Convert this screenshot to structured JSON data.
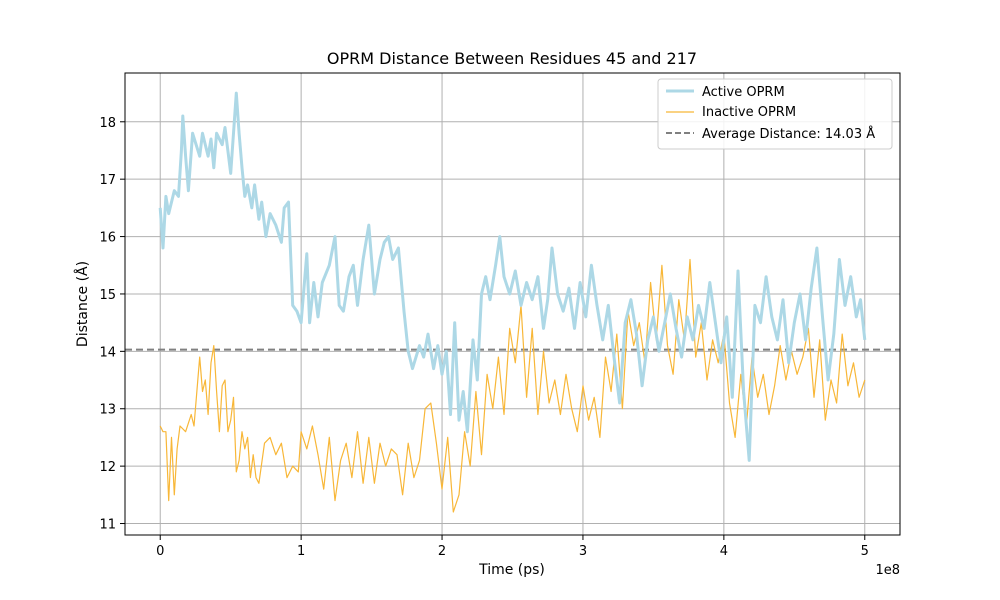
{
  "chart_data": {
    "type": "line",
    "title": "OPRM Distance Between Residues 45 and 217",
    "xlabel": "Time (ps)",
    "ylabel": "Distance (Å)",
    "x_scale_label": "1e8",
    "xlim": [
      -0.25,
      5.25
    ],
    "ylim": [
      10.8,
      18.85
    ],
    "x_ticks": [
      0,
      1,
      2,
      3,
      4,
      5
    ],
    "x_tick_labels": [
      "0",
      "1",
      "2",
      "3",
      "4",
      "5"
    ],
    "y_ticks": [
      11,
      12,
      13,
      14,
      15,
      16,
      17,
      18
    ],
    "y_tick_labels": [
      "11",
      "12",
      "13",
      "14",
      "15",
      "16",
      "17",
      "18"
    ],
    "grid": true,
    "legend_position": "top-right",
    "reference_line": {
      "value": 14.03,
      "label": "Average Distance: 14.03 Å",
      "color": "#808080",
      "style": "dashed"
    },
    "series": [
      {
        "name": "Active OPRM",
        "color": "#add8e6",
        "width": 3,
        "key_points": [
          [
            0.0,
            16.5
          ],
          [
            0.02,
            15.8
          ],
          [
            0.04,
            16.7
          ],
          [
            0.06,
            16.4
          ],
          [
            0.1,
            16.8
          ],
          [
            0.13,
            16.7
          ],
          [
            0.15,
            17.5
          ],
          [
            0.16,
            18.1
          ],
          [
            0.18,
            17.4
          ],
          [
            0.2,
            16.8
          ],
          [
            0.23,
            17.8
          ],
          [
            0.28,
            17.4
          ],
          [
            0.3,
            17.8
          ],
          [
            0.34,
            17.4
          ],
          [
            0.36,
            17.7
          ],
          [
            0.38,
            17.2
          ],
          [
            0.4,
            17.8
          ],
          [
            0.44,
            17.6
          ],
          [
            0.46,
            17.9
          ],
          [
            0.5,
            17.1
          ],
          [
            0.54,
            18.5
          ],
          [
            0.56,
            17.8
          ],
          [
            0.58,
            17.2
          ],
          [
            0.6,
            16.7
          ],
          [
            0.62,
            16.9
          ],
          [
            0.65,
            16.5
          ],
          [
            0.67,
            16.9
          ],
          [
            0.7,
            16.3
          ],
          [
            0.72,
            16.6
          ],
          [
            0.75,
            16.0
          ],
          [
            0.78,
            16.4
          ],
          [
            0.82,
            16.2
          ],
          [
            0.86,
            15.9
          ],
          [
            0.88,
            16.5
          ],
          [
            0.91,
            16.6
          ],
          [
            0.94,
            14.8
          ],
          [
            0.97,
            14.7
          ],
          [
            1.0,
            14.5
          ],
          [
            1.04,
            15.7
          ],
          [
            1.06,
            14.5
          ],
          [
            1.09,
            15.2
          ],
          [
            1.12,
            14.6
          ],
          [
            1.15,
            15.2
          ],
          [
            1.2,
            15.5
          ],
          [
            1.24,
            16.0
          ],
          [
            1.27,
            14.8
          ],
          [
            1.3,
            14.7
          ],
          [
            1.34,
            15.3
          ],
          [
            1.37,
            15.5
          ],
          [
            1.4,
            14.8
          ],
          [
            1.44,
            15.6
          ],
          [
            1.48,
            16.2
          ],
          [
            1.52,
            15.0
          ],
          [
            1.56,
            15.6
          ],
          [
            1.59,
            15.9
          ],
          [
            1.62,
            16.0
          ],
          [
            1.65,
            15.6
          ],
          [
            1.69,
            15.8
          ],
          [
            1.73,
            14.7
          ],
          [
            1.76,
            14.0
          ],
          [
            1.79,
            13.7
          ],
          [
            1.84,
            14.1
          ],
          [
            1.87,
            13.9
          ],
          [
            1.9,
            14.3
          ],
          [
            1.94,
            13.7
          ],
          [
            1.97,
            14.1
          ],
          [
            2.0,
            13.6
          ],
          [
            2.03,
            14.0
          ],
          [
            2.06,
            12.9
          ],
          [
            2.09,
            14.5
          ],
          [
            2.12,
            12.8
          ],
          [
            2.15,
            13.3
          ],
          [
            2.18,
            12.6
          ],
          [
            2.22,
            14.2
          ],
          [
            2.25,
            13.5
          ],
          [
            2.28,
            15.0
          ],
          [
            2.31,
            15.3
          ],
          [
            2.34,
            14.9
          ],
          [
            2.38,
            15.5
          ],
          [
            2.41,
            16.0
          ],
          [
            2.44,
            15.3
          ],
          [
            2.48,
            15.0
          ],
          [
            2.52,
            15.4
          ],
          [
            2.56,
            14.8
          ],
          [
            2.6,
            15.2
          ],
          [
            2.64,
            14.9
          ],
          [
            2.68,
            15.3
          ],
          [
            2.72,
            14.4
          ],
          [
            2.75,
            14.9
          ],
          [
            2.78,
            15.8
          ],
          [
            2.82,
            15.0
          ],
          [
            2.86,
            14.7
          ],
          [
            2.9,
            15.1
          ],
          [
            2.94,
            14.4
          ],
          [
            2.98,
            15.2
          ],
          [
            3.02,
            14.6
          ],
          [
            3.06,
            15.5
          ],
          [
            3.1,
            14.8
          ],
          [
            3.14,
            14.2
          ],
          [
            3.18,
            14.8
          ],
          [
            3.22,
            13.9
          ],
          [
            3.26,
            13.1
          ],
          [
            3.3,
            14.5
          ],
          [
            3.34,
            14.9
          ],
          [
            3.38,
            14.3
          ],
          [
            3.42,
            13.4
          ],
          [
            3.46,
            14.2
          ],
          [
            3.5,
            14.6
          ],
          [
            3.54,
            14.0
          ],
          [
            3.58,
            14.5
          ],
          [
            3.62,
            15.0
          ],
          [
            3.66,
            14.4
          ],
          [
            3.7,
            13.9
          ],
          [
            3.74,
            14.6
          ],
          [
            3.78,
            14.2
          ],
          [
            3.82,
            14.8
          ],
          [
            3.86,
            14.4
          ],
          [
            3.9,
            15.2
          ],
          [
            3.94,
            14.5
          ],
          [
            3.98,
            13.8
          ],
          [
            4.02,
            14.6
          ],
          [
            4.06,
            13.2
          ],
          [
            4.1,
            15.4
          ],
          [
            4.14,
            13.3
          ],
          [
            4.18,
            12.1
          ],
          [
            4.22,
            14.8
          ],
          [
            4.26,
            14.5
          ],
          [
            4.3,
            15.3
          ],
          [
            4.34,
            14.6
          ],
          [
            4.38,
            14.2
          ],
          [
            4.42,
            14.9
          ],
          [
            4.46,
            13.8
          ],
          [
            4.5,
            14.5
          ],
          [
            4.54,
            15.0
          ],
          [
            4.58,
            14.2
          ],
          [
            4.62,
            15.1
          ],
          [
            4.66,
            15.8
          ],
          [
            4.7,
            14.6
          ],
          [
            4.74,
            13.5
          ],
          [
            4.78,
            14.3
          ],
          [
            4.82,
            15.6
          ],
          [
            4.86,
            14.8
          ],
          [
            4.9,
            15.3
          ],
          [
            4.94,
            14.6
          ],
          [
            4.97,
            14.9
          ],
          [
            5.0,
            14.2
          ]
        ]
      },
      {
        "name": "Inactive OPRM",
        "color": "#f8b738",
        "width": 1.2,
        "key_points": [
          [
            0.0,
            12.7
          ],
          [
            0.02,
            12.6
          ],
          [
            0.04,
            12.6
          ],
          [
            0.06,
            11.4
          ],
          [
            0.08,
            12.5
          ],
          [
            0.1,
            11.5
          ],
          [
            0.12,
            12.3
          ],
          [
            0.14,
            12.7
          ],
          [
            0.18,
            12.6
          ],
          [
            0.22,
            12.9
          ],
          [
            0.24,
            12.7
          ],
          [
            0.28,
            13.9
          ],
          [
            0.3,
            13.3
          ],
          [
            0.32,
            13.5
          ],
          [
            0.34,
            12.9
          ],
          [
            0.36,
            13.8
          ],
          [
            0.38,
            14.1
          ],
          [
            0.4,
            13.3
          ],
          [
            0.42,
            12.6
          ],
          [
            0.44,
            13.4
          ],
          [
            0.46,
            13.5
          ],
          [
            0.48,
            12.6
          ],
          [
            0.5,
            12.8
          ],
          [
            0.52,
            13.2
          ],
          [
            0.54,
            11.9
          ],
          [
            0.56,
            12.1
          ],
          [
            0.58,
            12.6
          ],
          [
            0.6,
            12.3
          ],
          [
            0.62,
            12.5
          ],
          [
            0.64,
            11.8
          ],
          [
            0.66,
            12.2
          ],
          [
            0.68,
            11.8
          ],
          [
            0.7,
            11.7
          ],
          [
            0.74,
            12.4
          ],
          [
            0.78,
            12.5
          ],
          [
            0.82,
            12.2
          ],
          [
            0.86,
            12.4
          ],
          [
            0.9,
            11.8
          ],
          [
            0.94,
            12.0
          ],
          [
            0.98,
            11.9
          ],
          [
            1.0,
            12.6
          ],
          [
            1.04,
            12.3
          ],
          [
            1.08,
            12.7
          ],
          [
            1.12,
            12.2
          ],
          [
            1.16,
            11.6
          ],
          [
            1.2,
            12.5
          ],
          [
            1.24,
            11.4
          ],
          [
            1.28,
            12.1
          ],
          [
            1.32,
            12.4
          ],
          [
            1.36,
            11.8
          ],
          [
            1.4,
            12.6
          ],
          [
            1.44,
            11.7
          ],
          [
            1.48,
            12.5
          ],
          [
            1.52,
            11.7
          ],
          [
            1.56,
            12.4
          ],
          [
            1.6,
            12.0
          ],
          [
            1.64,
            12.3
          ],
          [
            1.68,
            12.2
          ],
          [
            1.72,
            11.5
          ],
          [
            1.76,
            12.4
          ],
          [
            1.8,
            11.8
          ],
          [
            1.84,
            12.1
          ],
          [
            1.88,
            13.0
          ],
          [
            1.92,
            13.1
          ],
          [
            1.96,
            12.4
          ],
          [
            2.0,
            11.6
          ],
          [
            2.04,
            12.5
          ],
          [
            2.08,
            11.2
          ],
          [
            2.12,
            11.5
          ],
          [
            2.16,
            12.6
          ],
          [
            2.2,
            12.0
          ],
          [
            2.24,
            13.3
          ],
          [
            2.28,
            12.2
          ],
          [
            2.32,
            13.6
          ],
          [
            2.36,
            13.0
          ],
          [
            2.4,
            13.9
          ],
          [
            2.44,
            12.9
          ],
          [
            2.48,
            14.4
          ],
          [
            2.52,
            13.8
          ],
          [
            2.56,
            14.8
          ],
          [
            2.6,
            13.2
          ],
          [
            2.64,
            14.4
          ],
          [
            2.68,
            12.9
          ],
          [
            2.72,
            14.0
          ],
          [
            2.76,
            13.1
          ],
          [
            2.8,
            13.5
          ],
          [
            2.84,
            12.9
          ],
          [
            2.88,
            13.6
          ],
          [
            2.92,
            13.0
          ],
          [
            2.96,
            12.6
          ],
          [
            3.0,
            13.4
          ],
          [
            3.04,
            12.8
          ],
          [
            3.08,
            13.2
          ],
          [
            3.12,
            12.5
          ],
          [
            3.16,
            13.9
          ],
          [
            3.2,
            13.3
          ],
          [
            3.24,
            14.3
          ],
          [
            3.28,
            13.0
          ],
          [
            3.32,
            14.7
          ],
          [
            3.36,
            14.1
          ],
          [
            3.4,
            14.5
          ],
          [
            3.44,
            13.8
          ],
          [
            3.48,
            15.2
          ],
          [
            3.52,
            14.2
          ],
          [
            3.56,
            15.5
          ],
          [
            3.6,
            14.1
          ],
          [
            3.64,
            13.6
          ],
          [
            3.68,
            14.9
          ],
          [
            3.72,
            14.2
          ],
          [
            3.76,
            15.6
          ],
          [
            3.8,
            13.9
          ],
          [
            3.84,
            14.5
          ],
          [
            3.88,
            13.5
          ],
          [
            3.92,
            14.2
          ],
          [
            3.96,
            13.8
          ],
          [
            4.0,
            14.3
          ],
          [
            4.04,
            13.1
          ],
          [
            4.08,
            12.5
          ],
          [
            4.12,
            13.6
          ],
          [
            4.16,
            12.7
          ],
          [
            4.2,
            13.9
          ],
          [
            4.24,
            13.2
          ],
          [
            4.28,
            13.6
          ],
          [
            4.32,
            12.9
          ],
          [
            4.36,
            13.4
          ],
          [
            4.4,
            14.1
          ],
          [
            4.44,
            13.5
          ],
          [
            4.48,
            14.0
          ],
          [
            4.52,
            13.6
          ],
          [
            4.56,
            13.9
          ],
          [
            4.6,
            14.4
          ],
          [
            4.64,
            13.2
          ],
          [
            4.68,
            14.2
          ],
          [
            4.72,
            12.8
          ],
          [
            4.76,
            13.5
          ],
          [
            4.8,
            13.1
          ],
          [
            4.84,
            14.3
          ],
          [
            4.88,
            13.4
          ],
          [
            4.92,
            13.8
          ],
          [
            4.96,
            13.2
          ],
          [
            5.0,
            13.5
          ]
        ]
      }
    ]
  }
}
